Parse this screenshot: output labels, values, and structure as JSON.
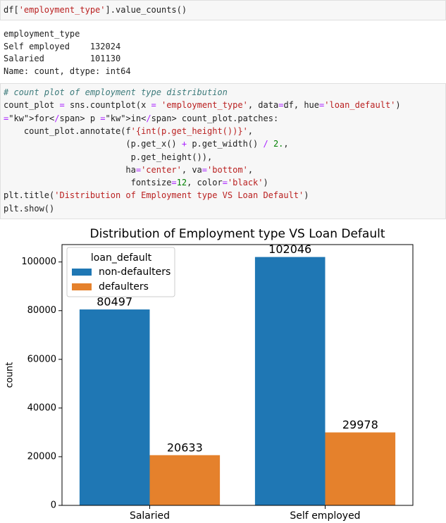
{
  "cells": [
    {
      "input": [
        "df['employment_type'].value_counts()"
      ],
      "output": [
        "employment_type",
        "Self employed    132024",
        "Salaried         101130",
        "Name: count, dtype: int64"
      ]
    },
    {
      "input": [
        "# count plot of employment type distribution",
        "count_plot = sns.countplot(x = 'employment_type', data=df, hue='loan_default')",
        "for p in count_plot.patches:",
        "    count_plot.annotate(f'{int(p.get_height())}',",
        "                        (p.get_x() + p.get_width() / 2.,",
        "                         p.get_height()),",
        "                        ha='center', va='bottom',",
        "                         fontsize=12, color='black')",
        "plt.title('Distribution of Employment type VS Loan Default')",
        "plt.show()"
      ]
    }
  ],
  "chart_data": {
    "type": "bar",
    "title": "Distribution of Employment type VS Loan Default",
    "x_label": "employment_type_hidden_none",
    "y_label": "count",
    "categories": [
      "Salaried",
      "Self employed"
    ],
    "legend_title": "loan_default",
    "legend": "upper left",
    "series": [
      {
        "name": "non-defaulters",
        "color": "#1f77b4",
        "values": [
          80497,
          102046
        ]
      },
      {
        "name": "defaulters",
        "color": "#e5812c",
        "values": [
          20633,
          29978
        ]
      }
    ],
    "ylim": [
      0,
      107148
    ],
    "yticks": [
      0,
      20000,
      40000,
      60000,
      80000,
      100000
    ]
  }
}
